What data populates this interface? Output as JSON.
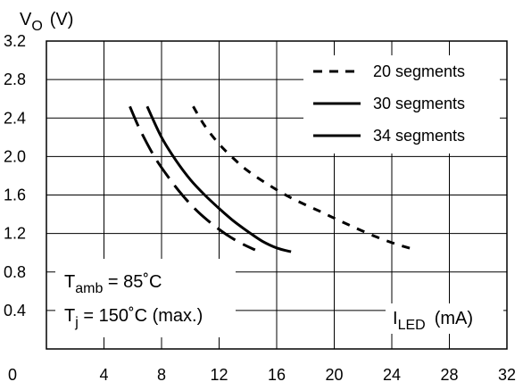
{
  "chart_data": {
    "type": "line",
    "ylabel": {
      "main": "V",
      "sub": "O",
      "unit": "(V)"
    },
    "xlabel": {
      "main": "I",
      "sub": "LED",
      "unit": "(mA)"
    },
    "xlim": [
      0,
      32
    ],
    "ylim": [
      0,
      3.2
    ],
    "x_ticks": [
      "0",
      "4",
      "8",
      "12",
      "16",
      "20",
      "24",
      "28",
      "32"
    ],
    "y_ticks": [
      "3.2",
      "2.8",
      "2.4",
      "2.0",
      "1.6",
      "1.2",
      "0.8",
      "0.4"
    ],
    "grid": true,
    "legend_position": "top-right",
    "series": [
      {
        "name": "20 segments",
        "style": "dotted",
        "x": [
          10.2,
          11,
          12,
          13,
          14,
          15.5,
          17,
          19,
          21,
          23,
          24.5,
          25.7
        ],
        "y": [
          2.52,
          2.32,
          2.13,
          1.98,
          1.85,
          1.7,
          1.57,
          1.43,
          1.29,
          1.16,
          1.08,
          1.03
        ]
      },
      {
        "name": "30 segments",
        "style": "solid",
        "x": [
          7.0,
          8,
          9,
          10,
          11,
          12,
          13,
          14,
          15,
          16,
          17.0
        ],
        "y": [
          2.52,
          2.2,
          1.96,
          1.76,
          1.6,
          1.46,
          1.33,
          1.22,
          1.12,
          1.05,
          1.01
        ]
      },
      {
        "name": "34 segments",
        "style": "dashed",
        "x": [
          5.8,
          6.5,
          7.5,
          8.5,
          9.5,
          10.5,
          11.5,
          12.5,
          13.5,
          14.5
        ],
        "y": [
          2.52,
          2.28,
          2.0,
          1.78,
          1.59,
          1.43,
          1.3,
          1.19,
          1.1,
          1.03
        ]
      }
    ],
    "annotations": [
      {
        "main": "T",
        "sub": "amb",
        "rest": " = 85˚C"
      },
      {
        "main": "T",
        "sub": "j",
        "rest": " = 150˚C (max.)"
      }
    ]
  }
}
